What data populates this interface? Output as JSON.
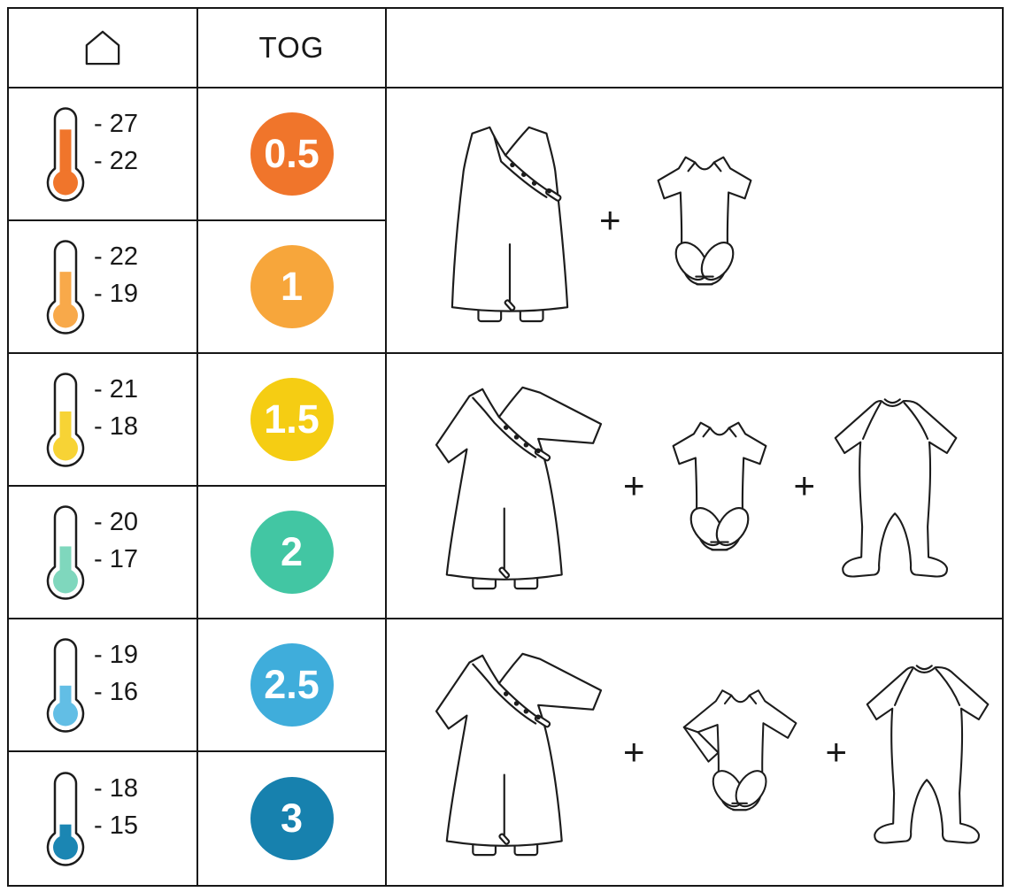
{
  "table": {
    "header": {
      "room_icon": "house-icon",
      "tog_label": "TOG"
    },
    "rows": [
      {
        "temp_high": "- 27",
        "temp_low": "- 22",
        "tog": "0.5",
        "badge_color": "#F0752B",
        "mercury_color": "#F0752B",
        "mercury_level": 0.88
      },
      {
        "temp_high": "- 22",
        "temp_low": "- 19",
        "tog": "1",
        "badge_color": "#F7A63B",
        "mercury_color": "#F8A94A",
        "mercury_level": 0.66
      },
      {
        "temp_high": "- 21",
        "temp_low": "- 18",
        "tog": "1.5",
        "badge_color": "#F5CD13",
        "mercury_color": "#F7D335",
        "mercury_level": 0.5
      },
      {
        "temp_high": "- 20",
        "temp_low": "- 17",
        "tog": "2",
        "badge_color": "#42C6A3",
        "mercury_color": "#7FD7BD",
        "mercury_level": 0.45
      },
      {
        "temp_high": "- 19",
        "temp_low": "- 16",
        "tog": "2.5",
        "badge_color": "#3FADDB",
        "mercury_color": "#62BEE5",
        "mercury_level": 0.3
      },
      {
        "temp_high": "- 18",
        "temp_low": "- 15",
        "tog": "3",
        "badge_color": "#1781AE",
        "mercury_color": "#1B86B3",
        "mercury_level": 0.18
      }
    ]
  },
  "outfit_groups": [
    {
      "plus": "+",
      "items": [
        "sleeveless-sleep-sack",
        "short-sleeve-bodysuit"
      ]
    },
    {
      "plus": "+",
      "items": [
        "long-sleeve-sleep-sack",
        "short-sleeve-bodysuit",
        "footed-pajamas"
      ]
    },
    {
      "plus": "+",
      "items": [
        "long-sleeve-sleep-sack",
        "long-sleeve-bodysuit",
        "footed-pajamas"
      ]
    }
  ]
}
